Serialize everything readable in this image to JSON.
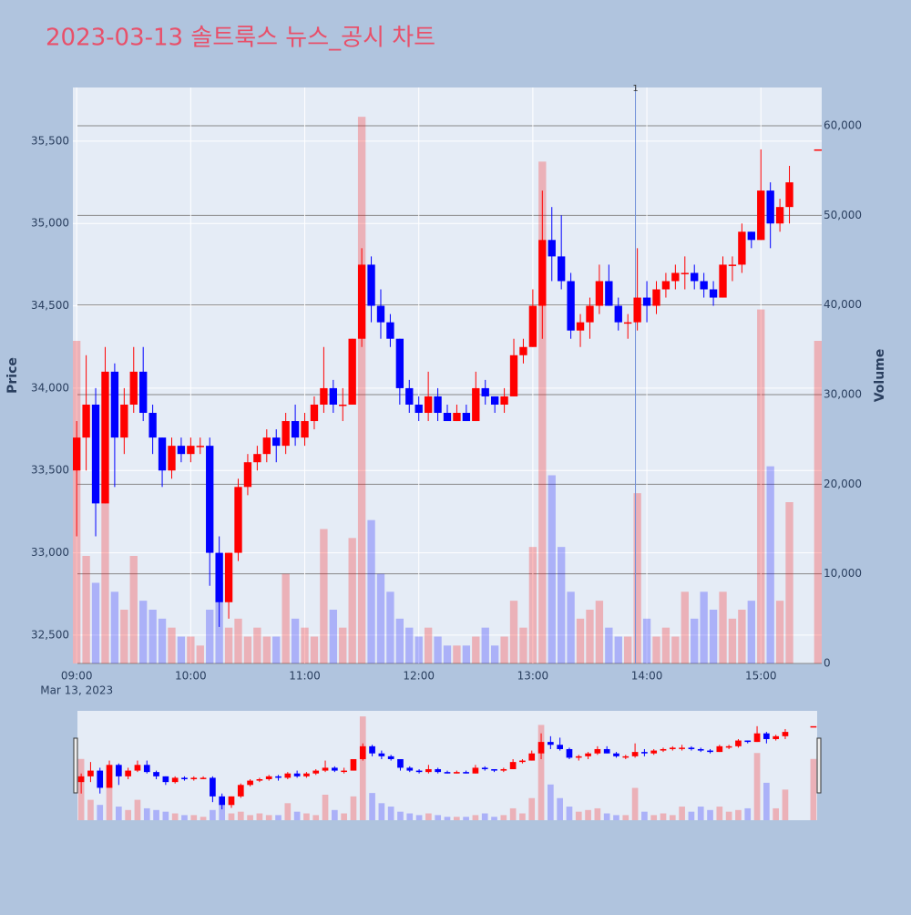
{
  "chart_data": {
    "type": "candlestick",
    "title": "2023-03-13 솔트룩스 뉴스_공시 차트",
    "y_title": "Price",
    "y2_title": "Volume",
    "x": [
      "09:00",
      "09:05",
      "09:10",
      "09:15",
      "09:20",
      "09:25",
      "09:30",
      "09:35",
      "09:40",
      "09:45",
      "09:50",
      "09:55",
      "10:00",
      "10:05",
      "10:10",
      "10:15",
      "10:20",
      "10:25",
      "10:30",
      "10:35",
      "10:40",
      "10:45",
      "10:50",
      "10:55",
      "11:00",
      "11:05",
      "11:10",
      "11:15",
      "11:20",
      "11:25",
      "11:30",
      "11:35",
      "11:40",
      "11:45",
      "11:50",
      "11:55",
      "12:00",
      "12:05",
      "12:10",
      "12:15",
      "12:20",
      "12:25",
      "12:30",
      "12:35",
      "12:40",
      "12:45",
      "12:50",
      "12:55",
      "13:00",
      "13:05",
      "13:10",
      "13:15",
      "13:20",
      "13:25",
      "13:30",
      "13:35",
      "13:40",
      "13:45",
      "13:50",
      "13:55",
      "14:00",
      "14:05",
      "14:10",
      "14:15",
      "14:20",
      "14:25",
      "14:30",
      "14:35",
      "14:40",
      "14:45",
      "14:50",
      "14:55",
      "15:00",
      "15:05",
      "15:10",
      "15:15",
      "15:30"
    ],
    "open": [
      33500,
      33700,
      33900,
      33300,
      34100,
      33700,
      33900,
      34100,
      33850,
      33700,
      33500,
      33650,
      33600,
      33650,
      33650,
      33000,
      32700,
      33000,
      33400,
      33550,
      33600,
      33700,
      33650,
      33800,
      33700,
      33800,
      33900,
      34000,
      33900,
      33900,
      34300,
      34750,
      34500,
      34400,
      34300,
      34000,
      33900,
      33850,
      33950,
      33850,
      33800,
      33850,
      33800,
      34000,
      33950,
      33900,
      33950,
      34200,
      34250,
      34500,
      34900,
      34800,
      34650,
      34350,
      34400,
      34500,
      34650,
      34500,
      34400,
      34400,
      34550,
      34500,
      34600,
      34650,
      34700,
      34700,
      34650,
      34600,
      34550,
      34750,
      34750,
      34950,
      34900,
      35200,
      35000,
      35100,
      35450
    ],
    "high": [
      33800,
      34200,
      34000,
      34250,
      34150,
      34000,
      34250,
      34250,
      33900,
      33700,
      33700,
      33700,
      33700,
      33700,
      33700,
      33100,
      33000,
      33450,
      33600,
      33650,
      33750,
      33750,
      33850,
      33900,
      33850,
      33950,
      34250,
      34050,
      34000,
      34300,
      34850,
      34800,
      34600,
      34450,
      34300,
      34050,
      33950,
      34100,
      34000,
      33900,
      33900,
      33900,
      34100,
      34050,
      33950,
      34000,
      34300,
      34300,
      34600,
      35200,
      35100,
      35050,
      34700,
      34450,
      34550,
      34750,
      34750,
      34550,
      34450,
      34850,
      34650,
      34650,
      34700,
      34750,
      34800,
      34750,
      34700,
      34650,
      34800,
      34800,
      35000,
      34950,
      35450,
      35250,
      35150,
      35350,
      35450
    ],
    "low": [
      33100,
      33500,
      33100,
      33300,
      33400,
      33600,
      33850,
      33800,
      33600,
      33400,
      33450,
      33550,
      33550,
      33600,
      32800,
      32550,
      32600,
      32950,
      33350,
      33500,
      33550,
      33550,
      33600,
      33650,
      33650,
      33750,
      33850,
      33850,
      33800,
      33900,
      34250,
      34400,
      34300,
      34250,
      33900,
      33850,
      33800,
      33800,
      33800,
      33800,
      33800,
      33800,
      33800,
      33900,
      33850,
      33850,
      33950,
      34150,
      34250,
      34300,
      34650,
      34600,
      34300,
      34250,
      34300,
      34450,
      34500,
      34350,
      34300,
      34350,
      34400,
      34450,
      34550,
      34600,
      34600,
      34600,
      34550,
      34500,
      34550,
      34650,
      34700,
      34850,
      34900,
      34850,
      34950,
      35000,
      35450
    ],
    "close": [
      33700,
      33900,
      33300,
      34100,
      33700,
      33900,
      34100,
      33850,
      33700,
      33500,
      33650,
      33600,
      33650,
      33650,
      33000,
      32700,
      33000,
      33400,
      33550,
      33600,
      33700,
      33650,
      33800,
      33700,
      33800,
      33900,
      34000,
      33900,
      33900,
      34300,
      34750,
      34500,
      34400,
      34300,
      34000,
      33900,
      33850,
      33950,
      33850,
      33800,
      33850,
      33800,
      34000,
      33950,
      33900,
      33950,
      34200,
      34250,
      34500,
      34900,
      34800,
      34650,
      34350,
      34400,
      34500,
      34650,
      34500,
      34400,
      34400,
      34550,
      34500,
      34600,
      34650,
      34700,
      34700,
      34650,
      34600,
      34550,
      34750,
      34750,
      34950,
      34900,
      35200,
      35000,
      35100,
      35250,
      35450
    ],
    "volume": [
      36000,
      12000,
      9000,
      20000,
      8000,
      6000,
      12000,
      7000,
      6000,
      5000,
      4000,
      3000,
      3000,
      2000,
      6000,
      9000,
      4000,
      5000,
      3000,
      4000,
      3000,
      3000,
      10000,
      5000,
      4000,
      3000,
      15000,
      6000,
      4000,
      14000,
      61000,
      16000,
      10000,
      8000,
      5000,
      4000,
      3000,
      4000,
      3000,
      2000,
      2000,
      2000,
      3000,
      4000,
      2000,
      3000,
      7000,
      4000,
      13000,
      56000,
      21000,
      13000,
      8000,
      5000,
      6000,
      7000,
      4000,
      3000,
      3000,
      19000,
      5000,
      3000,
      4000,
      3000,
      8000,
      5000,
      8000,
      6000,
      8000,
      5000,
      6000,
      7000,
      39500,
      22000,
      7000,
      18000,
      36000
    ],
    "increasing_color": "#ff0000",
    "decreasing_color": "#0000ff",
    "xlim": [
      "08:58",
      "15:32"
    ],
    "xticks": [
      "09:00",
      "10:00",
      "11:00",
      "12:00",
      "13:00",
      "14:00",
      "15:00"
    ],
    "x_date_label": "Mar 13, 2023",
    "ylim": [
      32328,
      35826
    ],
    "yticks": [
      {
        "value": 32500,
        "label": "32,500"
      },
      {
        "value": 33000,
        "label": "33,000"
      },
      {
        "value": 33500,
        "label": "33,500"
      },
      {
        "value": 34000,
        "label": "34,000"
      },
      {
        "value": 34500,
        "label": "34,500"
      },
      {
        "value": 35000,
        "label": "35,000"
      },
      {
        "value": 35500,
        "label": "35,500"
      }
    ],
    "y2lim": [
      0,
      64270
    ],
    "y2ticks": [
      0,
      {
        "value": 10000,
        "label": "10,000"
      },
      {
        "value": 20000,
        "label": "20,000"
      },
      {
        "value": 30000,
        "label": "30,000"
      },
      {
        "value": 40000,
        "label": "40,000"
      },
      {
        "value": 50000,
        "label": "50,000"
      },
      {
        "value": 60000,
        "label": "60,000"
      }
    ],
    "annotation": {
      "x": "13:54",
      "text": "1"
    },
    "grid": true
  }
}
